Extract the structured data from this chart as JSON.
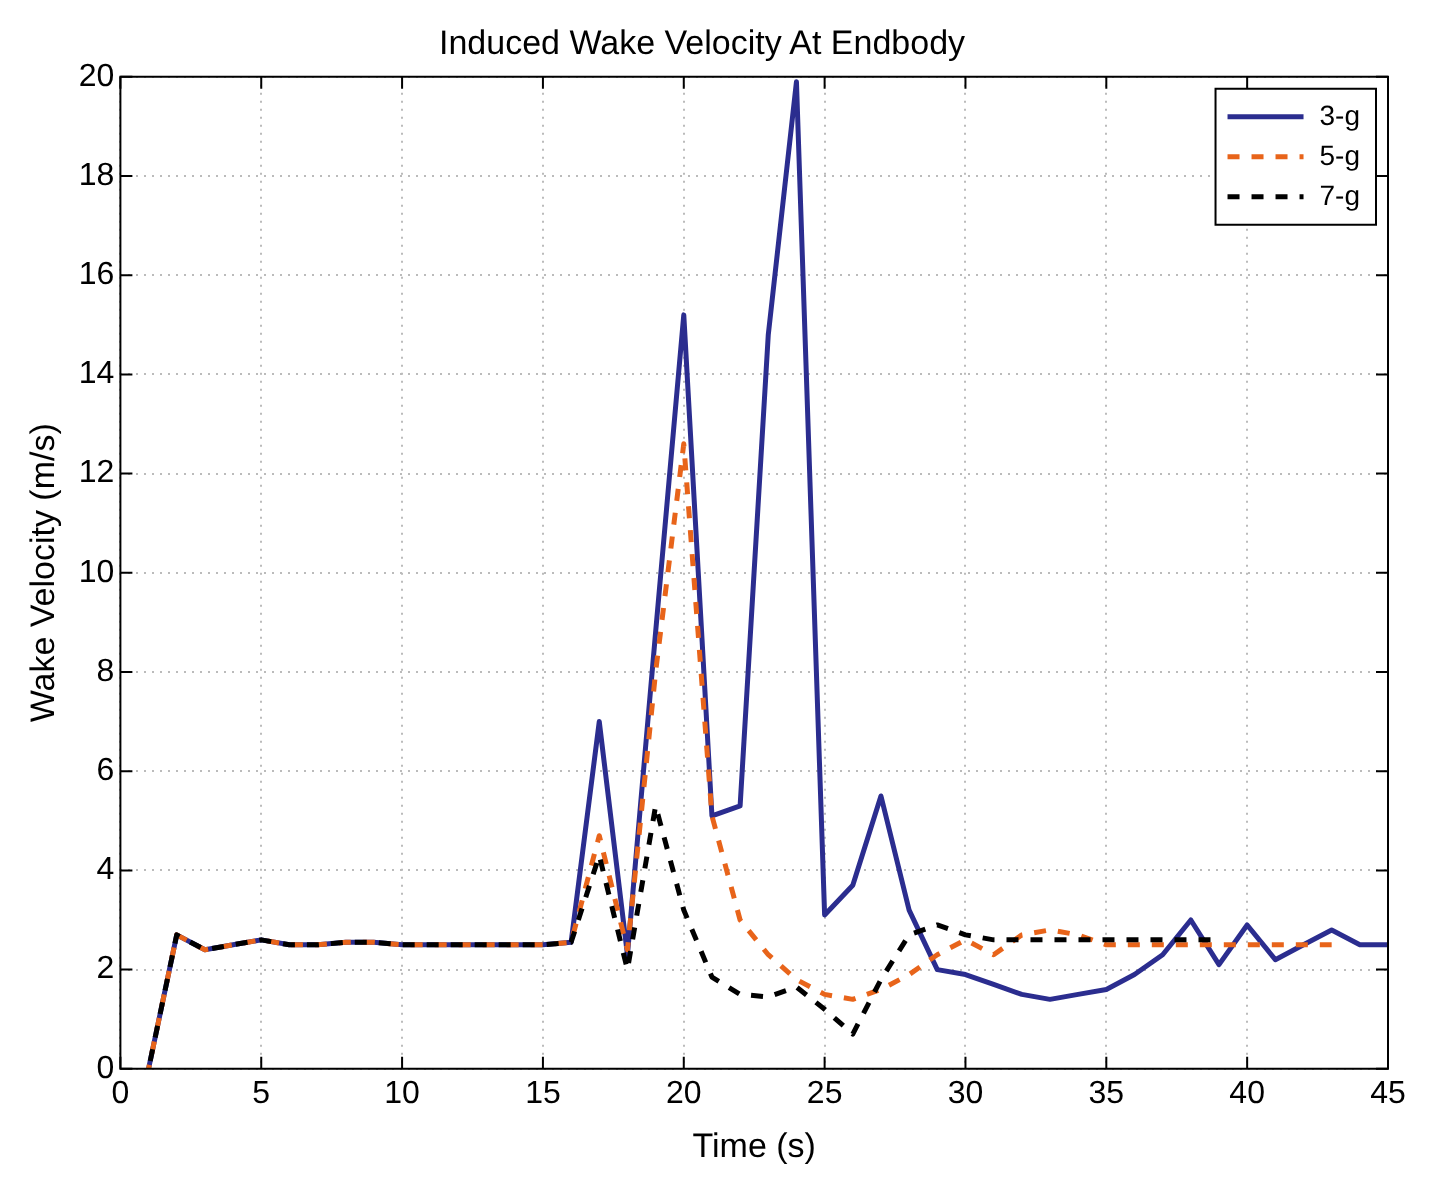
{
  "chart_data": {
    "type": "line",
    "title": "Induced Wake Velocity At Endbody",
    "xlabel": "Time (s)",
    "ylabel": "Wake Velocity (m/s)",
    "x": [
      1,
      2,
      3,
      4,
      5,
      6,
      7,
      8,
      9,
      10,
      11,
      12,
      13,
      14,
      15,
      16,
      17,
      18,
      19,
      20,
      21,
      22,
      23,
      24,
      25,
      26,
      27,
      28,
      29,
      30,
      31,
      32,
      33,
      34,
      35,
      36,
      37,
      38,
      39,
      40,
      41,
      42,
      43,
      44,
      45
    ],
    "series": [
      {
        "name": "3-g",
        "color": "#2b2d8f",
        "line_style": "solid",
        "values": [
          0,
          2.7,
          2.4,
          2.5,
          2.6,
          2.5,
          2.5,
          2.55,
          2.55,
          2.5,
          2.5,
          2.5,
          2.5,
          2.5,
          2.5,
          2.55,
          7.0,
          2.3,
          8.8,
          15.2,
          5.1,
          5.3,
          14.8,
          19.9,
          3.1,
          3.7,
          5.5,
          3.2,
          2.0,
          1.9,
          1.7,
          1.5,
          1.4,
          1.5,
          1.6,
          1.9,
          2.3,
          3.0,
          2.1,
          2.9,
          2.2,
          2.5,
          2.8,
          2.5,
          2.5
        ]
      },
      {
        "name": "5-g",
        "color": "#e8641a",
        "line_style": "dashed",
        "values": [
          0,
          2.7,
          2.4,
          2.5,
          2.6,
          2.5,
          2.5,
          2.55,
          2.55,
          2.5,
          2.5,
          2.5,
          2.5,
          2.5,
          2.5,
          2.55,
          4.7,
          2.4,
          8.0,
          12.6,
          5.1,
          3.0,
          2.3,
          1.8,
          1.5,
          1.4,
          1.6,
          1.9,
          2.3,
          2.6,
          2.3,
          2.7,
          2.8,
          2.7,
          2.5,
          2.5,
          2.5,
          2.5,
          2.5,
          2.5,
          2.5,
          2.5,
          2.5,
          null,
          null
        ]
      },
      {
        "name": "7-g",
        "color": "#000000",
        "line_style": "dashed",
        "values": [
          0,
          2.7,
          2.4,
          2.5,
          2.6,
          2.5,
          2.5,
          2.55,
          2.55,
          2.5,
          2.5,
          2.5,
          2.5,
          2.5,
          2.5,
          2.55,
          4.3,
          2.0,
          5.3,
          3.2,
          1.85,
          1.5,
          1.45,
          1.65,
          1.2,
          0.7,
          1.8,
          2.7,
          2.9,
          2.7,
          2.6,
          2.6,
          2.6,
          2.6,
          2.6,
          2.6,
          2.6,
          2.6,
          2.6,
          null,
          null,
          null,
          null,
          null,
          null
        ]
      }
    ],
    "xlim": [
      0,
      45
    ],
    "xticks": [
      0,
      5,
      10,
      15,
      20,
      25,
      30,
      35,
      40,
      45
    ],
    "ylim": [
      0,
      20
    ],
    "yticks": [
      0,
      2,
      4,
      6,
      8,
      10,
      12,
      14,
      16,
      18,
      20
    ],
    "grid": true,
    "legend": "top right",
    "marker": "none"
  }
}
